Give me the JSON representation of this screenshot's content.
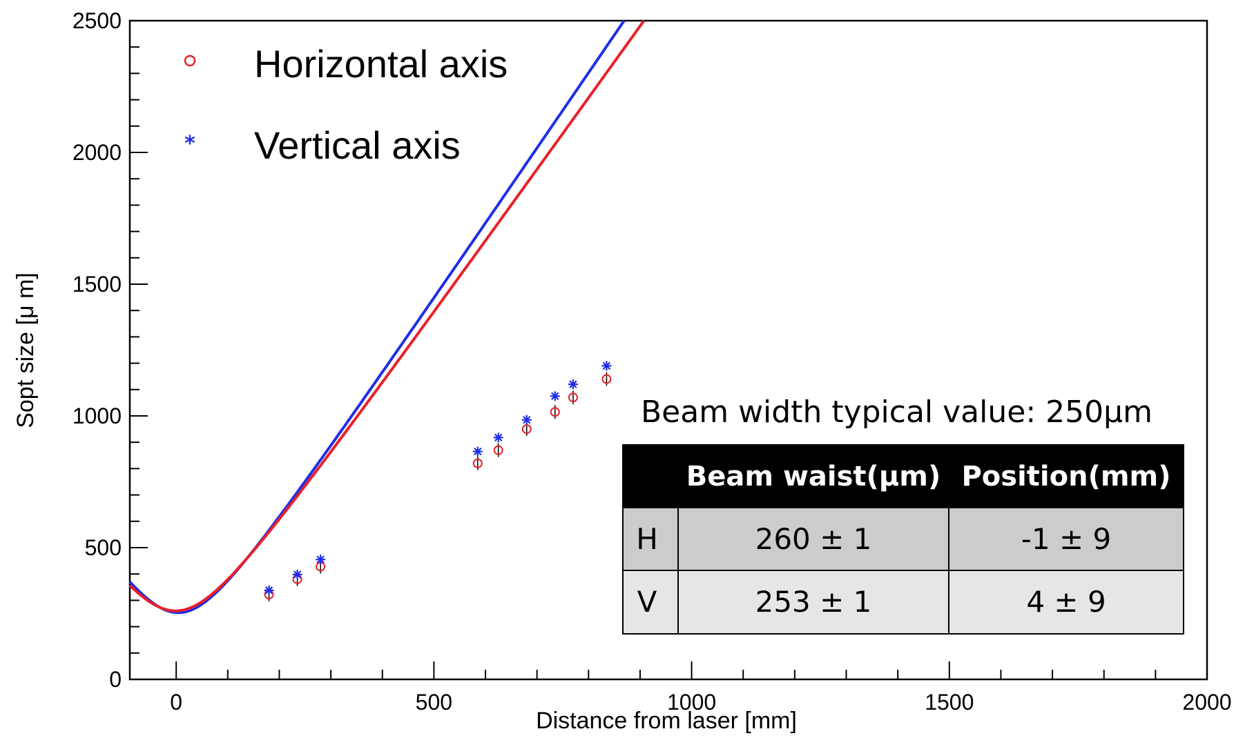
{
  "chart_data": {
    "type": "scatter",
    "xlabel": "Distance from laser [mm]",
    "ylabel": "Sopt size [μ m]",
    "xlim": [
      -90,
      2000
    ],
    "ylim": [
      0,
      2500
    ],
    "x_ticks": [
      0,
      500,
      1000,
      1500,
      2000
    ],
    "y_ticks": [
      0,
      500,
      1000,
      1500,
      2000,
      2500
    ],
    "grid": false,
    "legend_position": "top-left",
    "series": [
      {
        "name": "Horizontal axis",
        "marker": "open-circle",
        "color": "#e8202a",
        "x": [
          180,
          235,
          280,
          585,
          625,
          680,
          735,
          770,
          835
        ],
        "y": [
          322,
          380,
          428,
          820,
          870,
          950,
          1015,
          1070,
          1140
        ],
        "fit": {
          "waist_um": 260,
          "position_mm": -1
        }
      },
      {
        "name": "Vertical axis",
        "marker": "star",
        "color": "#1f2ee8",
        "x": [
          180,
          235,
          280,
          585,
          625,
          680,
          735,
          770,
          835
        ],
        "y": [
          338,
          398,
          455,
          865,
          918,
          985,
          1075,
          1120,
          1190
        ],
        "fit": {
          "waist_um": 253,
          "position_mm": 4
        }
      }
    ],
    "annotation": {
      "title": "Beam width typical value: 250μm",
      "table": {
        "headers": [
          "",
          "Beam waist(μm)",
          "Position(mm)"
        ],
        "rows": [
          [
            "H",
            "260 ± 1",
            "-1 ± 9"
          ],
          [
            "V",
            "253 ± 1",
            "4 ± 9"
          ]
        ]
      }
    }
  },
  "colors": {
    "horizontal": "#e8202a",
    "vertical": "#1f2ee8",
    "table_header_bg": "#000000",
    "row_h_bg": "#cccccc",
    "row_v_bg": "#e6e6e6"
  }
}
